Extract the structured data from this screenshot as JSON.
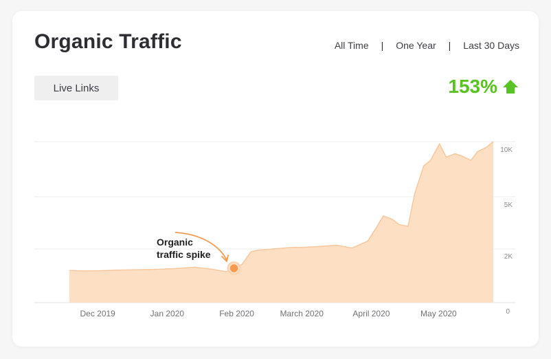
{
  "header": {
    "title": "Organic Traffic",
    "ranges": [
      "All Time",
      "One Year",
      "Last 30 Days"
    ],
    "live_links_label": "Live Links",
    "growth_label": "153%"
  },
  "annotation": {
    "line1": "Organic",
    "line2": "traffic spike"
  },
  "colors": {
    "area_fill": "#fde0c4",
    "area_stroke": "#f7c79d",
    "marker": "#f59a4f",
    "growth": "#58c322"
  },
  "chart_data": {
    "type": "area",
    "title": "Organic Traffic",
    "x_axis": {
      "scale": "time",
      "ticks": [
        "Dec 2019",
        "Jan 2020",
        "Feb 2020",
        "March 2020",
        "April 2020",
        "May 2020"
      ]
    },
    "y_axis": {
      "position": "right",
      "ticks": [
        "0",
        "2K",
        "5K",
        "10K"
      ],
      "scale": "nonlinear"
    },
    "grid": true,
    "series": [
      {
        "x": [
          "2019-11-19",
          "2019-11-26",
          "2019-12-03",
          "2019-12-10",
          "2019-12-17",
          "2019-12-24",
          "2019-12-31",
          "2020-01-07",
          "2020-01-14",
          "2020-01-21",
          "2020-01-28",
          "2020-02-04",
          "2020-02-08",
          "2020-02-11",
          "2020-02-18",
          "2020-02-25",
          "2020-03-03",
          "2020-03-10",
          "2020-03-17",
          "2020-03-24",
          "2020-03-31",
          "2020-04-04",
          "2020-04-07",
          "2020-04-11",
          "2020-04-14",
          "2020-04-18",
          "2020-04-21",
          "2020-04-25",
          "2020-04-28",
          "2020-05-02",
          "2020-05-05",
          "2020-05-09",
          "2020-05-12",
          "2020-05-16",
          "2020-05-19",
          "2020-05-23",
          "2020-05-26"
        ],
        "y": [
          1200,
          1180,
          1190,
          1210,
          1220,
          1230,
          1250,
          1280,
          1320,
          1250,
          1150,
          1430,
          1900,
          1950,
          2000,
          2080,
          2100,
          2150,
          2220,
          2050,
          2450,
          3250,
          3900,
          3700,
          3400,
          3300,
          5300,
          7800,
          8300,
          9800,
          8600,
          8900,
          8700,
          8300,
          9100,
          9500,
          10000
        ]
      }
    ],
    "annotations": [
      {
        "x": "2020-02-01",
        "y": 1400,
        "text": "Organic traffic spike"
      }
    ]
  }
}
